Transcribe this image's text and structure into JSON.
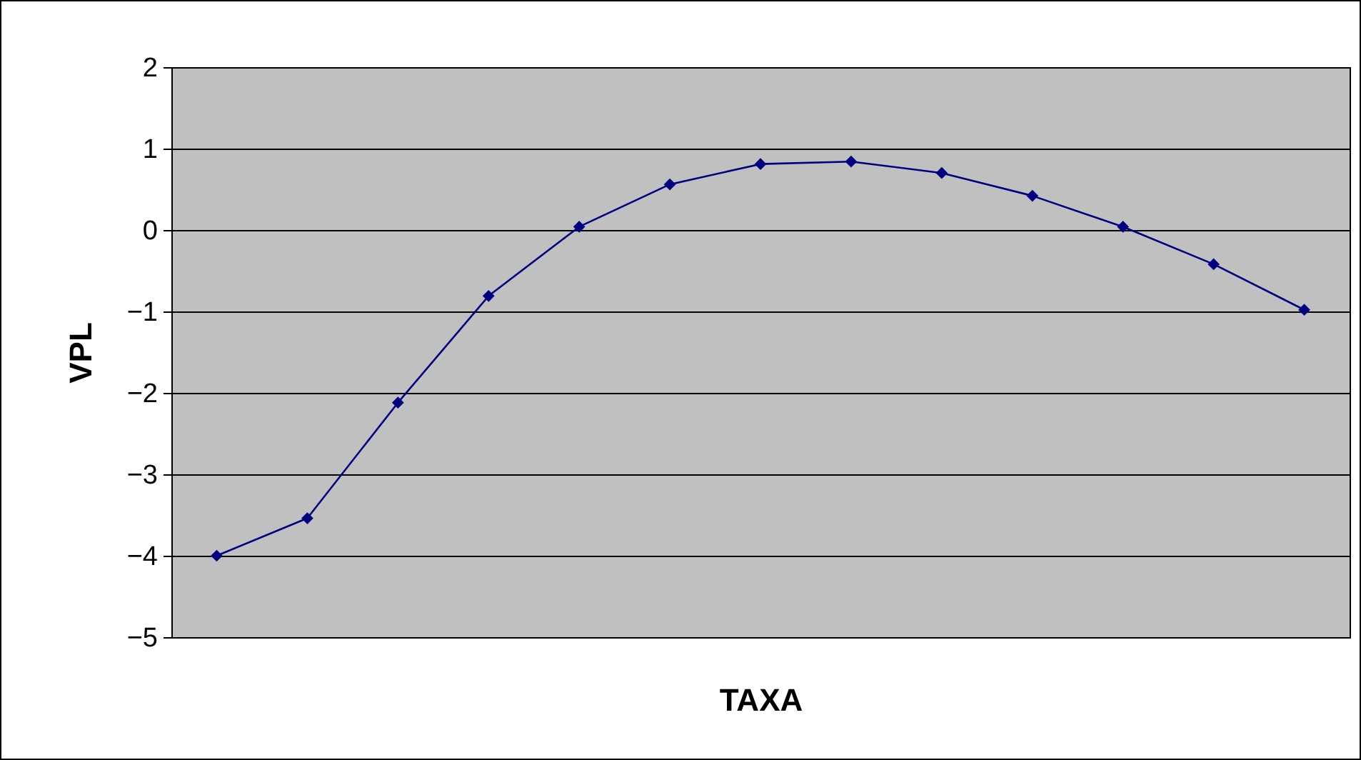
{
  "chart_data": {
    "type": "line",
    "xlabel": "TAXA",
    "ylabel": "VPL",
    "categories": [
      null,
      null,
      null,
      null,
      null,
      null,
      null,
      null,
      null,
      null,
      null,
      null,
      null
    ],
    "series": [
      {
        "color": "#000080",
        "values": [
          -4.0,
          -3.54,
          -2.12,
          -0.81,
          0.04,
          0.56,
          0.81,
          0.84,
          0.7,
          0.42,
          0.04,
          -0.42,
          -0.98
        ]
      }
    ],
    "ylim": [
      -5,
      2
    ],
    "yticks": [
      -5,
      -4,
      -3,
      -2,
      -1,
      0,
      1,
      2
    ],
    "grid": "y",
    "marker": "diamond",
    "line_style": "solid",
    "legend": false
  }
}
